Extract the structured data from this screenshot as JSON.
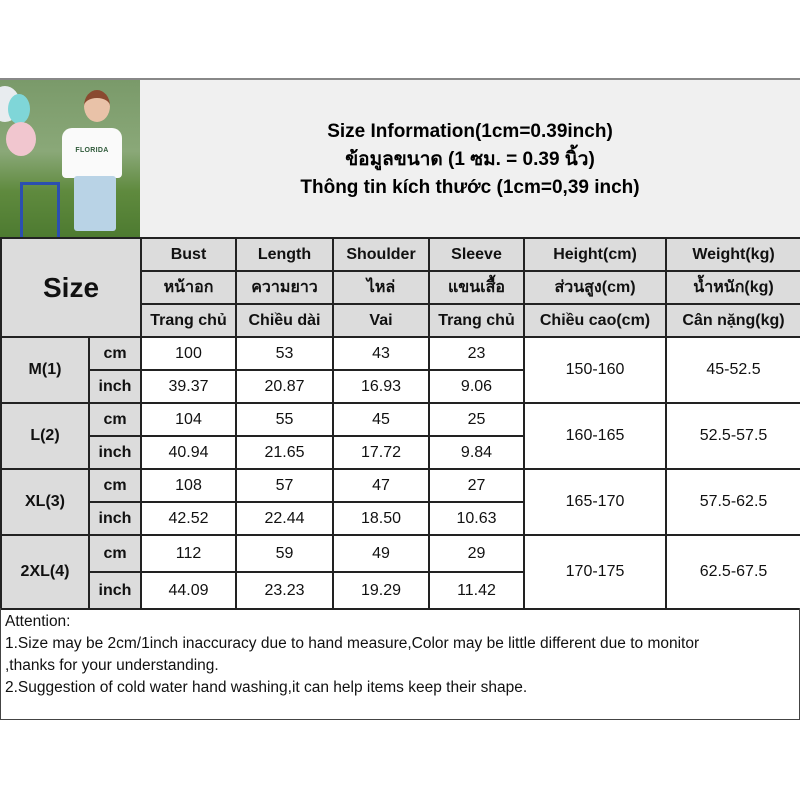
{
  "title": {
    "lines": [
      "Size Information(1cm=0.39inch)",
      "ข้อมูลขนาด (1 ซม. = 0.39 นิ้ว)",
      "Thông tin kích thước (1cm=0,39 inch)"
    ]
  },
  "photo": {
    "text": "FLORIDA"
  },
  "table": {
    "size_label": "Size",
    "headers": [
      {
        "en": "Bust",
        "th": "หน้าอก",
        "vi": "Trang chủ"
      },
      {
        "en": "Length",
        "th": "ความยาว",
        "vi": "Chiều dài"
      },
      {
        "en": "Shoulder",
        "th": "ไหล่",
        "vi": "Vai"
      },
      {
        "en": "Sleeve",
        "th": "แขนเสื้อ",
        "vi": "Trang chủ"
      },
      {
        "en": "Height(cm)",
        "th": "ส่วนสูง(cm)",
        "vi": "Chiều cao(cm)"
      },
      {
        "en": "Weight(kg)",
        "th": "น้ำหนัก(kg)",
        "vi": "Cân nặng(kg)"
      }
    ],
    "rows": [
      {
        "size": "M(1)",
        "cm_label": "cm",
        "inch_label": "inch",
        "cm": [
          "100",
          "53",
          "43",
          "23"
        ],
        "inch": [
          "39.37",
          "20.87",
          "16.93",
          "9.06"
        ],
        "height": "150-160",
        "weight": "45-52.5"
      },
      {
        "size": "L(2)",
        "cm_label": "cm",
        "inch_label": "inch",
        "cm": [
          "104",
          "55",
          "45",
          "25"
        ],
        "inch": [
          "40.94",
          "21.65",
          "17.72",
          "9.84"
        ],
        "height": "160-165",
        "weight": "52.5-57.5"
      },
      {
        "size": "XL(3)",
        "cm_label": "cm",
        "inch_label": "inch",
        "cm": [
          "108",
          "57",
          "47",
          "27"
        ],
        "inch": [
          "42.52",
          "22.44",
          "18.50",
          "10.63"
        ],
        "height": "165-170",
        "weight": "57.5-62.5"
      },
      {
        "size": "2XL(4)",
        "cm_label": "cm",
        "inch_label": "inch",
        "cm": [
          "112",
          "59",
          "49",
          "29"
        ],
        "inch": [
          "44.09",
          "23.23",
          "19.29",
          "11.42"
        ],
        "height": "170-175",
        "weight": "62.5-67.5"
      }
    ]
  },
  "attention": {
    "lines": [
      "Attention:",
      "1.Size may be 2cm/1inch inaccuracy due to hand measure,Color may be little different due to monitor",
      ",thanks for your understanding.",
      "2.Suggestion of cold water hand washing,it can help items keep their shape."
    ]
  }
}
